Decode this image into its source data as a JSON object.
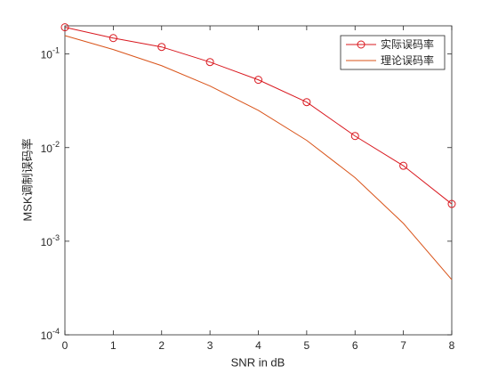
{
  "chart_data": {
    "type": "line",
    "x": [
      0,
      1,
      2,
      3,
      4,
      5,
      6,
      7,
      8
    ],
    "series": [
      {
        "name": "实际误码率",
        "color": "#d9181f",
        "marker": "circle",
        "values": [
          0.193,
          0.148,
          0.119,
          0.082,
          0.053,
          0.0306,
          0.0133,
          0.0064,
          0.0025
        ]
      },
      {
        "name": "理论误码率",
        "color": "#d95319",
        "values": [
          0.1573,
          0.1116,
          0.075,
          0.0455,
          0.025,
          0.01195,
          0.00478,
          0.00155,
          0.000388
        ]
      }
    ],
    "xlabel": "SNR in dB",
    "ylabel": "MSK调制误码率",
    "xlim": [
      0,
      8
    ],
    "xticks": [
      0,
      1,
      2,
      3,
      4,
      5,
      6,
      7,
      8
    ],
    "ylim": [
      0.0001,
      0.2
    ],
    "ylog": true,
    "yticks": [
      {
        "value": 0.0001,
        "label": "10^-4"
      },
      {
        "value": 0.001,
        "label": "10^-3"
      },
      {
        "value": 0.01,
        "label": "10^-2"
      },
      {
        "value": 0.1,
        "label": "10^-1"
      }
    ],
    "legend": "upper right"
  }
}
